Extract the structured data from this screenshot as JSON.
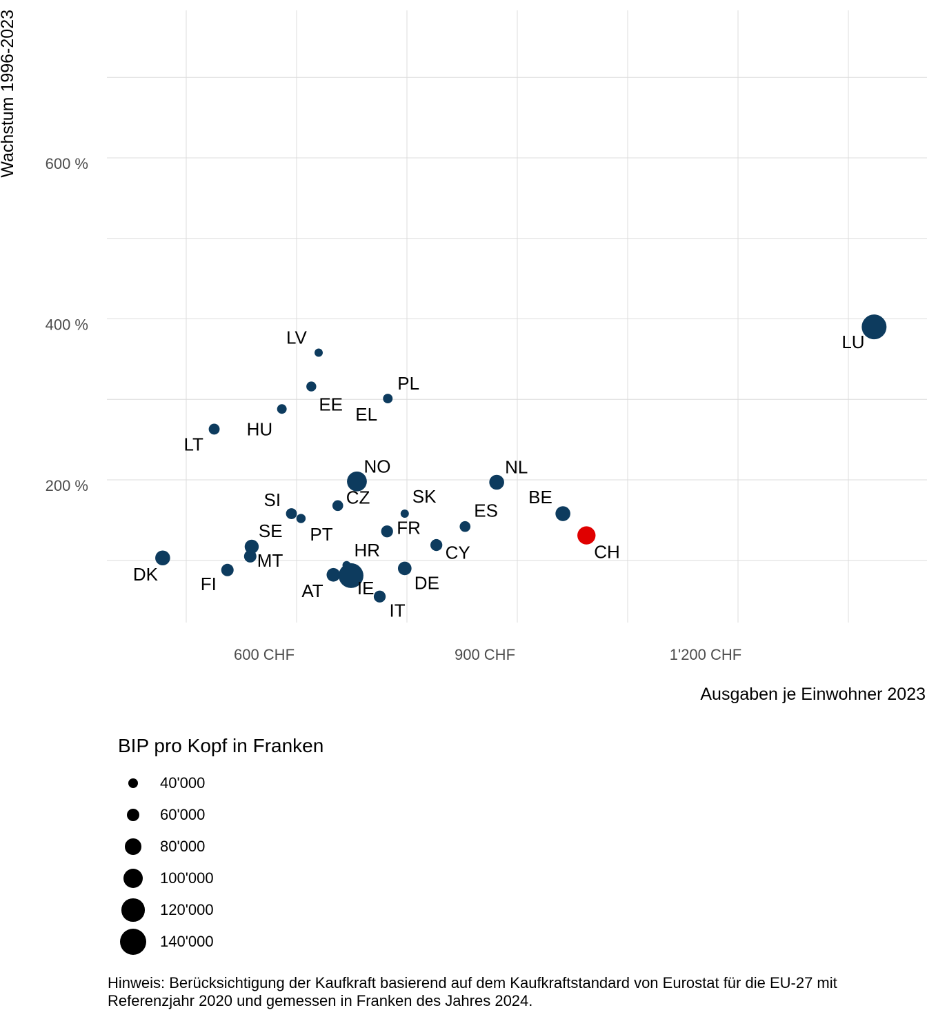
{
  "chart_data": {
    "type": "scatter",
    "title": "",
    "xlabel": "Ausgaben je Einwohner 2023",
    "ylabel": "Wachstum 1996-2023",
    "xlim": [
      380,
      1390
    ],
    "ylim": [
      0,
      785
    ],
    "x_ticks": [
      {
        "value": 600,
        "label": "600 CHF"
      },
      {
        "value": 900,
        "label": "900 CHF"
      },
      {
        "value": 1200,
        "label": "1'200 CHF"
      }
    ],
    "x_minor_gridlines": [
      450,
      750,
      1050,
      1350
    ],
    "y_ticks": [
      {
        "value": 200,
        "label": "200 %"
      },
      {
        "value": 400,
        "label": "400 %"
      },
      {
        "value": 600,
        "label": "600 %"
      }
    ],
    "y_minor_gridlines": [
      100,
      300,
      500,
      700
    ],
    "grid": true,
    "point_color": "#0d3b5e",
    "highlight_color": "#e00000",
    "size_legend": {
      "title": "BIP pro Kopf in Franken",
      "items": [
        {
          "value": 40000,
          "label": "40'000"
        },
        {
          "value": 60000,
          "label": "60'000"
        },
        {
          "value": 80000,
          "label": "80'000"
        },
        {
          "value": 100000,
          "label": "100'000"
        },
        {
          "value": 120000,
          "label": "120'000"
        },
        {
          "value": 140000,
          "label": "140'000"
        }
      ]
    },
    "points": [
      {
        "label": "LU",
        "x": 1385,
        "y": 390,
        "gdp": 140000,
        "highlight": false
      },
      {
        "label": "LV",
        "x": 630,
        "y": 358,
        "gdp": 40000,
        "highlight": false
      },
      {
        "label": "EE",
        "x": 620,
        "y": 316,
        "gdp": 50000,
        "highlight": false
      },
      {
        "label": "PL",
        "x": 724,
        "y": 301,
        "gdp": 48000,
        "highlight": false
      },
      {
        "label": "EL",
        "x": 724,
        "y": 301,
        "gdp": 0,
        "highlight": false,
        "label_only": true
      },
      {
        "label": "HU",
        "x": 580,
        "y": 288,
        "gdp": 48000,
        "highlight": false
      },
      {
        "label": "LT",
        "x": 488,
        "y": 263,
        "gdp": 56000,
        "highlight": false
      },
      {
        "label": "NO",
        "x": 682,
        "y": 198,
        "gdp": 110000,
        "highlight": false
      },
      {
        "label": "NL",
        "x": 872,
        "y": 197,
        "gdp": 80000,
        "highlight": false
      },
      {
        "label": "CZ",
        "x": 656,
        "y": 168,
        "gdp": 55000,
        "highlight": false
      },
      {
        "label": "SI",
        "x": 593,
        "y": 158,
        "gdp": 56000,
        "highlight": false
      },
      {
        "label": "PT",
        "x": 606,
        "y": 152,
        "gdp": 46000,
        "highlight": false
      },
      {
        "label": "SK",
        "x": 747,
        "y": 158,
        "gdp": 40000,
        "highlight": false
      },
      {
        "label": "BE",
        "x": 962,
        "y": 158,
        "gdp": 80000,
        "highlight": false
      },
      {
        "label": "ES",
        "x": 829,
        "y": 142,
        "gdp": 55000,
        "highlight": false
      },
      {
        "label": "CH",
        "x": 994,
        "y": 131,
        "gdp": 100000,
        "highlight": true
      },
      {
        "label": "FR",
        "x": 723,
        "y": 136,
        "gdp": 62000,
        "highlight": false
      },
      {
        "label": "CY",
        "x": 790,
        "y": 119,
        "gdp": 62000,
        "highlight": false
      },
      {
        "label": "SE",
        "x": 539,
        "y": 117,
        "gdp": 75000,
        "highlight": false
      },
      {
        "label": "DK",
        "x": 418,
        "y": 103,
        "gdp": 80000,
        "highlight": false
      },
      {
        "label": "MT",
        "x": 537,
        "y": 105,
        "gdp": 65000,
        "highlight": false
      },
      {
        "label": "FI",
        "x": 506,
        "y": 88,
        "gdp": 65000,
        "highlight": false
      },
      {
        "label": "HR",
        "x": 668,
        "y": 94,
        "gdp": 40000,
        "highlight": false
      },
      {
        "label": "AT",
        "x": 650,
        "y": 82,
        "gdp": 72000,
        "highlight": false
      },
      {
        "label": "IE",
        "x": 674,
        "y": 81,
        "gdp": 140000,
        "highlight": false
      },
      {
        "label": "DE",
        "x": 747,
        "y": 90,
        "gdp": 72000,
        "highlight": false
      },
      {
        "label": "IT",
        "x": 713,
        "y": 55,
        "gdp": 62000,
        "highlight": false
      }
    ]
  },
  "note": "Hinweis: Berücksichtigung der Kaufkraft basierend auf dem Kaufkraftstandard von Eurostat für die EU-27 mit Referenzjahr 2020 und gemessen in Franken des Jahres 2024."
}
